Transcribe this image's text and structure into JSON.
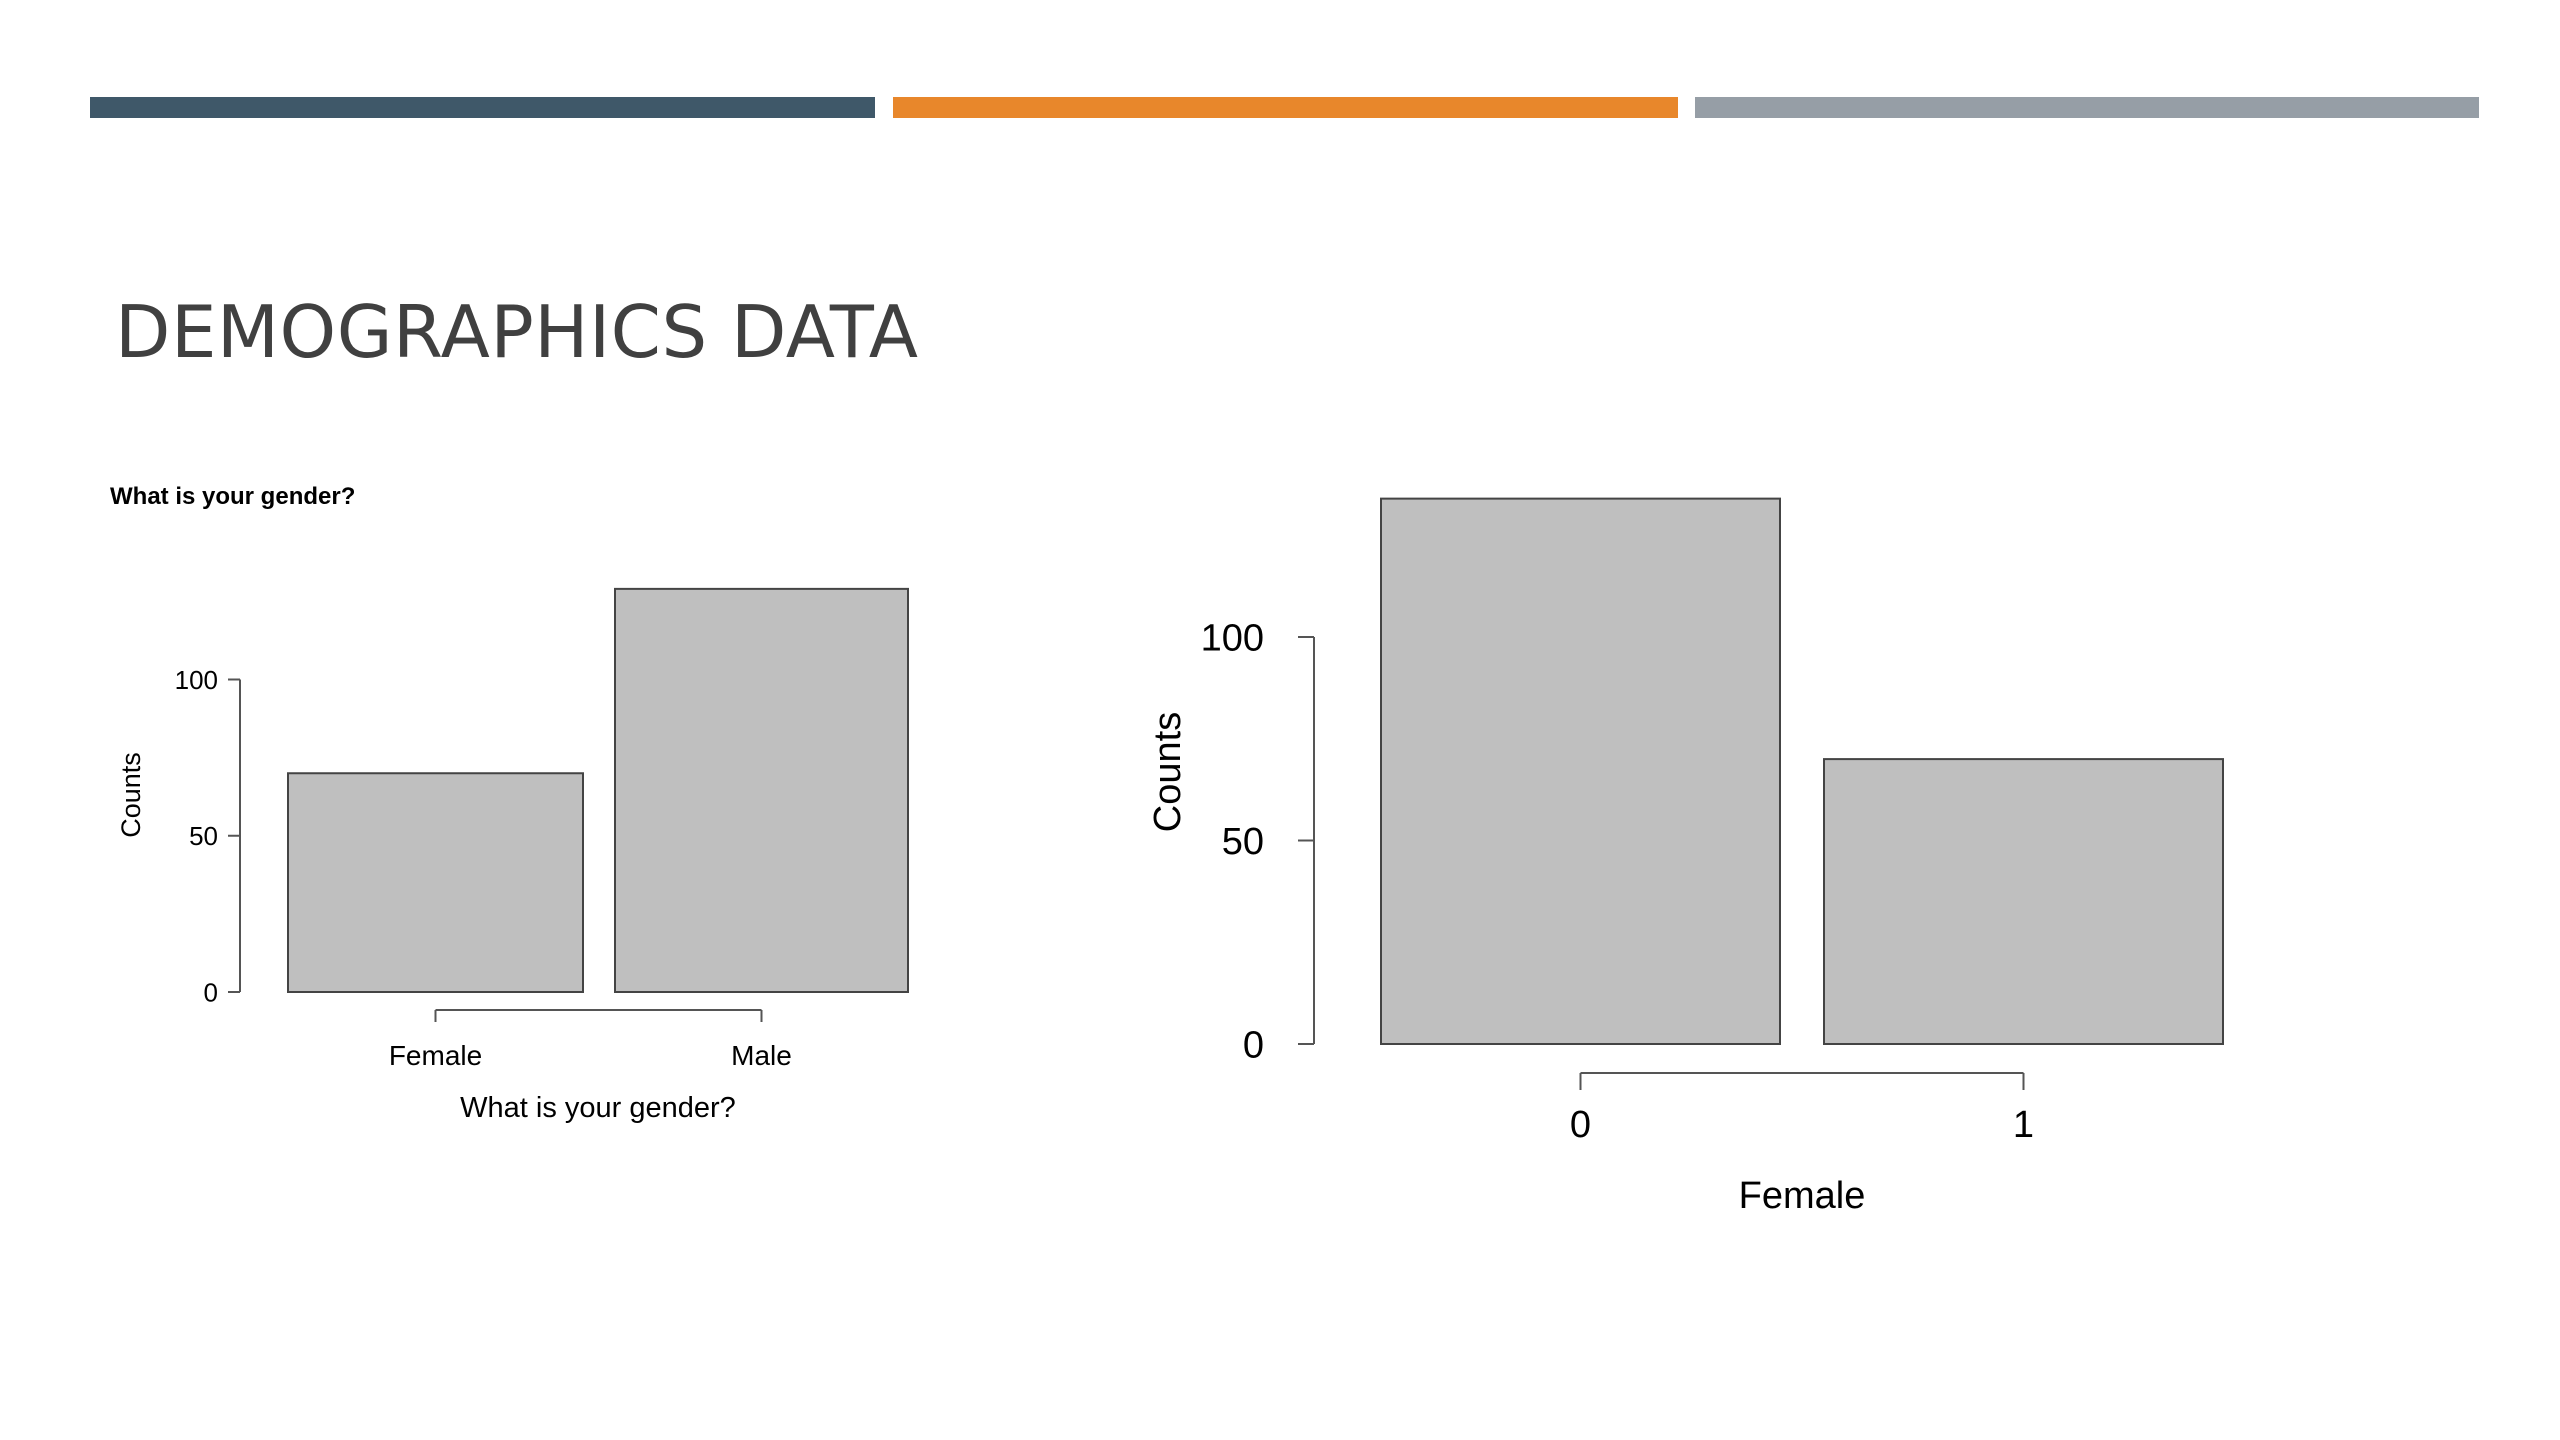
{
  "header": {
    "accent_colors": [
      "#3f5869",
      "#e8872b",
      "#969ea6"
    ]
  },
  "slide": {
    "title": "DEMOGRAPHICS DATA"
  },
  "chart_data": [
    {
      "type": "bar",
      "title": "What is your gender?",
      "categories": [
        "Female",
        "Male"
      ],
      "values": [
        70,
        129
      ],
      "xlabel": "What is your gender?",
      "ylabel": "Counts",
      "yticks": [
        0,
        50,
        100
      ],
      "ylim": [
        0,
        129
      ],
      "grid": false,
      "bar_color": "#bfbfbf"
    },
    {
      "type": "bar",
      "categories": [
        "0",
        "1"
      ],
      "values": [
        134,
        70
      ],
      "xlabel": "Female",
      "ylabel": "Counts",
      "yticks": [
        0,
        50,
        100
      ],
      "ylim": [
        0,
        134
      ],
      "grid": false,
      "bar_color": "#bfbfbf"
    }
  ]
}
